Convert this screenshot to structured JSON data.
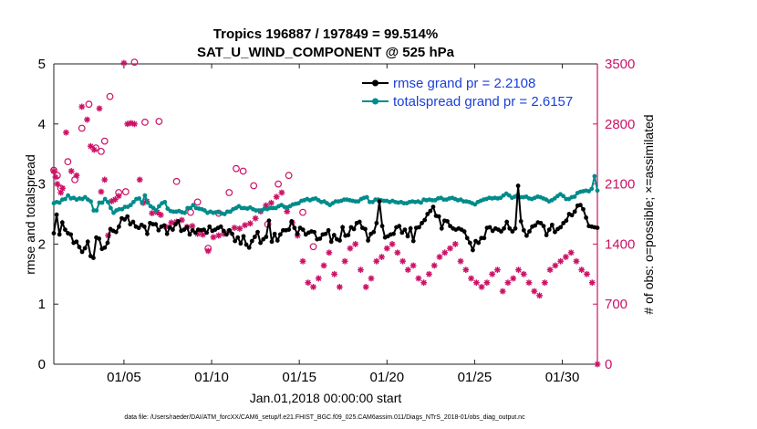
{
  "chart_data": {
    "type": "line",
    "title": "Tropics 196887 / 197849 = 99.514%",
    "subtitle": "SAT_U_WIND_COMPONENT @ 525 hPa",
    "xlabel": "Jan.01,2018 00:00:00 start",
    "ylabel": "rmse and totalspread",
    "y2label": "# of obs: o=possible; ×=assimilated",
    "xlim": [
      1,
      32
    ],
    "ylim": [
      0,
      5
    ],
    "y2lim": [
      0,
      3500
    ],
    "x_ticks": [
      5,
      10,
      15,
      20,
      25,
      30
    ],
    "x_tick_labels": [
      "01/05",
      "01/10",
      "01/15",
      "01/20",
      "01/25",
      "01/30"
    ],
    "y_ticks": [
      0,
      1,
      2,
      3,
      4,
      5
    ],
    "y_tick_labels": [
      "0",
      "1",
      "2",
      "3",
      "4",
      "5"
    ],
    "y2_ticks": [
      0,
      700,
      1400,
      2100,
      2800,
      3500
    ],
    "y2_tick_labels": [
      "0",
      "700",
      "1400",
      "2100",
      "2800",
      "3500"
    ],
    "colors": {
      "rmse": "#000000",
      "spread": "#008b8b",
      "obs": "#cc1166",
      "legend_text": "#1a3fd8"
    },
    "series": [
      {
        "name": "rmse grand pr = 2.2108",
        "axis": "left",
        "marker": "dot",
        "values": [
          2.18,
          2.49,
          2.16,
          2.36,
          2.24,
          2.18,
          2.16,
          2.02,
          2.04,
          1.95,
          1.87,
          1.93,
          2.04,
          1.8,
          1.77,
          2.11,
          2.09,
          1.92,
          1.94,
          2.02,
          2.25,
          2.22,
          2.2,
          2.29,
          2.43,
          2.41,
          2.46,
          2.33,
          2.37,
          2.29,
          2.27,
          2.32,
          2.29,
          2.17,
          2.35,
          2.33,
          2.33,
          2.23,
          2.29,
          2.31,
          2.17,
          2.28,
          2.24,
          2.33,
          2.38,
          2.22,
          2.24,
          2.28,
          2.16,
          2.23,
          2.19,
          2.24,
          2.23,
          2.24,
          2.19,
          2.29,
          2.22,
          2.24,
          2.27,
          2.29,
          2.22,
          2.16,
          2.23,
          2.17,
          2.05,
          2.11,
          2.01,
          2.13,
          1.99,
          1.94,
          2.05,
          2.12,
          2.2,
          2.02,
          2.08,
          2.12,
          2.39,
          2.04,
          2.17,
          2.06,
          2.16,
          2.23,
          2.23,
          2.24,
          2.38,
          2.27,
          2.17,
          2.27,
          2.24,
          2.16,
          2.19,
          2.21,
          2.2,
          2.08,
          2.09,
          2.16,
          2.17,
          2.23,
          2.04,
          2.15,
          2.08,
          2.06,
          2.28,
          2.14,
          2.15,
          2.28,
          2.25,
          2.35,
          2.37,
          2.27,
          2.25,
          2.06,
          2.17,
          2.2,
          2.35,
          2.71,
          2.3,
          2.11,
          2.13,
          2.16,
          2.17,
          2.28,
          2.3,
          2.19,
          2.24,
          2.13,
          2.26,
          2.05,
          2.27,
          2.28,
          2.35,
          2.4,
          2.5,
          2.55,
          2.62,
          2.47,
          2.46,
          2.26,
          2.39,
          2.38,
          2.3,
          2.26,
          2.24,
          2.26,
          2.24,
          2.21,
          2.1,
          2.02,
          1.9,
          2.05,
          2.02,
          2.1,
          2.1,
          2.27,
          2.28,
          2.22,
          2.26,
          2.24,
          2.21,
          2.26,
          2.37,
          2.26,
          2.21,
          2.26,
          2.97,
          2.38,
          2.23,
          2.14,
          2.21,
          2.29,
          2.31,
          2.36,
          2.35,
          2.3,
          2.15,
          2.24,
          2.32,
          2.2,
          2.25,
          2.28,
          2.35,
          2.39,
          2.5,
          2.48,
          2.54,
          2.64,
          2.65,
          2.58,
          2.44,
          2.3,
          2.29,
          2.28,
          2.27
        ]
      },
      {
        "name": "totalspread grand pr = 2.6157",
        "axis": "left",
        "marker": "dot",
        "values": [
          2.68,
          2.7,
          2.69,
          2.74,
          2.75,
          2.81,
          2.76,
          2.77,
          2.74,
          2.76,
          2.75,
          2.78,
          2.74,
          2.71,
          2.56,
          2.56,
          2.69,
          2.69,
          2.75,
          2.7,
          2.6,
          2.52,
          2.56,
          2.58,
          2.58,
          2.62,
          2.62,
          2.65,
          2.7,
          2.75,
          2.76,
          2.69,
          2.81,
          2.69,
          2.63,
          2.6,
          2.56,
          2.63,
          2.68,
          2.7,
          2.59,
          2.55,
          2.54,
          2.54,
          2.55,
          2.53,
          2.52,
          2.6,
          2.6,
          2.65,
          2.6,
          2.59,
          2.58,
          2.56,
          2.52,
          2.54,
          2.52,
          2.53,
          2.53,
          2.51,
          2.5,
          2.54,
          2.54,
          2.58,
          2.6,
          2.63,
          2.6,
          2.6,
          2.59,
          2.61,
          2.58,
          2.56,
          2.56,
          2.56,
          2.59,
          2.58,
          2.6,
          2.6,
          2.6,
          2.63,
          2.65,
          2.62,
          2.61,
          2.63,
          2.66,
          2.67,
          2.68,
          2.72,
          2.73,
          2.75,
          2.73,
          2.75,
          2.76,
          2.73,
          2.7,
          2.71,
          2.68,
          2.65,
          2.68,
          2.71,
          2.71,
          2.72,
          2.74,
          2.74,
          2.73,
          2.72,
          2.71,
          2.71,
          2.75,
          2.77,
          2.78,
          2.7,
          2.7,
          2.74,
          2.74,
          2.73,
          2.72,
          2.72,
          2.7,
          2.72,
          2.7,
          2.69,
          2.7,
          2.68,
          2.68,
          2.7,
          2.71,
          2.7,
          2.71,
          2.69,
          2.74,
          2.73,
          2.74,
          2.73,
          2.73,
          2.76,
          2.77,
          2.74,
          2.74,
          2.76,
          2.77,
          2.75,
          2.73,
          2.74,
          2.71,
          2.71,
          2.7,
          2.68,
          2.66,
          2.7,
          2.72,
          2.74,
          2.75,
          2.77,
          2.76,
          2.77,
          2.76,
          2.77,
          2.81,
          2.84,
          2.81,
          2.77,
          2.79,
          2.82,
          2.78,
          2.78,
          2.79,
          2.76,
          2.75,
          2.77,
          2.79,
          2.78,
          2.76,
          2.74,
          2.71,
          2.73,
          2.76,
          2.8,
          2.83,
          2.8,
          2.75,
          2.75,
          2.78,
          2.79,
          2.85,
          2.87,
          2.88,
          2.89,
          2.88,
          2.92,
          3.13,
          2.89
        ]
      },
      {
        "name": "obs possible",
        "axis": "right",
        "marker": "circle",
        "x": [
          1.0,
          1.2,
          1.4,
          1.8,
          2.2,
          2.6,
          3.0,
          3.4,
          3.7,
          3.9,
          4.2,
          4.7,
          5.1,
          5.6,
          6.2,
          7.0,
          8.0,
          8.8,
          9.2,
          9.8,
          10.4,
          11.0,
          11.4,
          11.8,
          12.4,
          13.2,
          13.8,
          14.4,
          15.2,
          15.8
        ],
        "values": [
          2260,
          2200,
          2050,
          2360,
          2150,
          2750,
          3030,
          2520,
          2480,
          2600,
          3120,
          2000,
          2010,
          3520,
          2820,
          2830,
          2130,
          1770,
          1890,
          1350,
          1760,
          2000,
          2280,
          2250,
          2080,
          1630,
          2100,
          2200,
          1770,
          1370
        ]
      },
      {
        "name": "obs assimilated",
        "axis": "right",
        "marker": "star",
        "x": [
          1.0,
          1.1,
          1.2,
          1.4,
          1.5,
          1.7,
          2.0,
          2.3,
          2.6,
          2.9,
          3.1,
          3.3,
          3.6,
          3.7,
          3.9,
          4.1,
          4.3,
          4.5,
          4.7,
          5.0,
          5.2,
          5.4,
          5.6,
          5.9,
          6.1,
          6.3,
          6.6,
          6.9,
          7.1,
          7.4,
          7.7,
          8.0,
          8.3,
          8.6,
          8.9,
          9.2,
          9.5,
          9.8,
          10.1,
          10.4,
          10.7,
          11.0,
          11.3,
          11.6,
          11.9,
          12.2,
          12.5,
          12.8,
          13.1,
          13.4,
          13.7,
          14.0,
          14.3,
          14.6,
          14.9,
          15.2,
          15.5,
          15.8,
          16.1,
          16.4,
          16.7,
          17.0,
          17.3,
          17.6,
          17.9,
          18.2,
          18.5,
          18.8,
          19.1,
          19.4,
          19.7,
          20.0,
          20.3,
          20.6,
          20.9,
          21.2,
          21.5,
          21.8,
          22.1,
          22.4,
          22.7,
          23.0,
          23.3,
          23.6,
          23.9,
          24.2,
          24.5,
          24.8,
          25.1,
          25.4,
          25.7,
          26.0,
          26.3,
          26.6,
          26.9,
          27.2,
          27.5,
          27.8,
          28.1,
          28.4,
          28.7,
          29.0,
          29.3,
          29.6,
          29.9,
          30.2,
          30.5,
          30.8,
          31.1,
          31.4,
          31.7,
          32.0
        ],
        "values": [
          2250,
          2180,
          2100,
          2000,
          2050,
          2700,
          2250,
          2200,
          3000,
          2850,
          2540,
          2500,
          2980,
          2010,
          2150,
          1500,
          1900,
          1920,
          1960,
          3510,
          2800,
          2810,
          2800,
          2150,
          1880,
          1900,
          1760,
          1770,
          1740,
          1600,
          1650,
          1660,
          1680,
          1600,
          1610,
          1520,
          1510,
          1320,
          1480,
          1500,
          1520,
          1550,
          1590,
          1580,
          1620,
          1640,
          1700,
          1780,
          1850,
          1880,
          1950,
          2000,
          1780,
          1650,
          1500,
          1200,
          950,
          900,
          1000,
          1150,
          1300,
          1050,
          900,
          1200,
          1350,
          1400,
          1100,
          900,
          1000,
          1200,
          1250,
          1350,
          1400,
          1300,
          1200,
          1100,
          1150,
          1000,
          950,
          1050,
          1150,
          1250,
          1300,
          1350,
          1400,
          1200,
          1100,
          1000,
          950,
          900,
          950,
          1050,
          1100,
          850,
          950,
          1000,
          1100,
          1050,
          950,
          850,
          800,
          950,
          1100,
          1150,
          1200,
          1250,
          1300,
          1200,
          1100,
          1050,
          950,
          0
        ]
      }
    ],
    "legend": {
      "placement": "top-right",
      "entries": [
        "rmse grand pr = 2.2108",
        "totalspread grand pr = 2.6157"
      ]
    },
    "footnote": "data file: /Users/raeder/DAI/ATM_forcXX/CAM6_setup/f.e21.FHIST_BGC.f09_025.CAM6assim.011/Diags_NTrS_2018-01/obs_diag_output.nc"
  }
}
